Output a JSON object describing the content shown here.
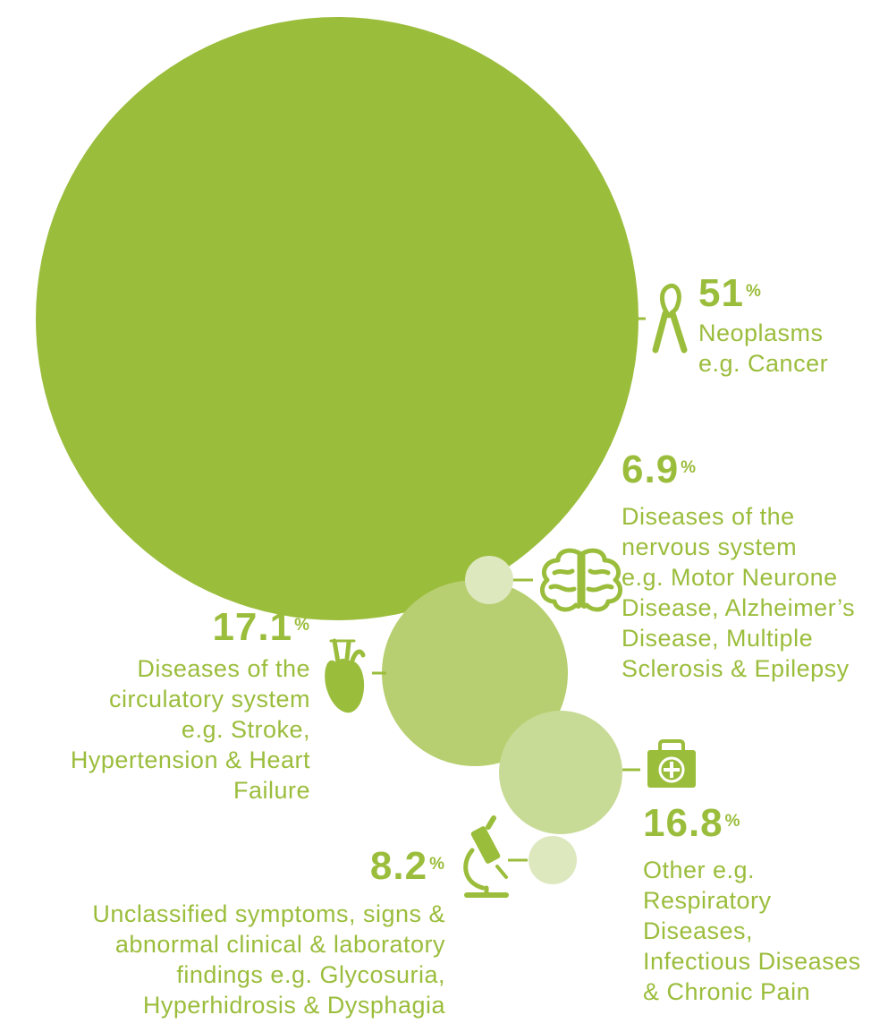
{
  "chart_data": {
    "type": "bubble",
    "colors": {
      "primary": "#9bbd3c",
      "mid": "#b7cf70",
      "light": "#c8db96",
      "pale": "#dde8bf"
    },
    "series": [
      {
        "key": "neoplasms",
        "value": 51,
        "value_label": "51",
        "unit": "%",
        "icon": "ribbon-icon",
        "lines": [
          "Neoplasms",
          "e.g. Cancer"
        ]
      },
      {
        "key": "nervous",
        "value": 6.9,
        "value_label": "6.9",
        "unit": "%",
        "icon": "brain-icon",
        "lines": [
          "Diseases of the",
          "nervous system",
          "e.g. Motor Neurone",
          "Disease, Alzheimer’s",
          "Disease, Multiple",
          "Sclerosis & Epilepsy"
        ]
      },
      {
        "key": "circulatory",
        "value": 17.1,
        "value_label": "17.1",
        "unit": "%",
        "icon": "heart-icon",
        "lines": [
          "Diseases of the",
          "circulatory system",
          "e.g. Stroke,",
          "Hypertension & Heart",
          "Failure"
        ]
      },
      {
        "key": "other",
        "value": 16.8,
        "value_label": "16.8",
        "unit": "%",
        "icon": "first-aid-kit-icon",
        "lines": [
          "Other e.g.",
          "Respiratory",
          "Diseases,",
          "Infectious Diseases",
          "& Chronic Pain"
        ]
      },
      {
        "key": "unclassified",
        "value": 8.2,
        "value_label": "8.2",
        "unit": "%",
        "icon": "microscope-icon",
        "lines": [
          "Unclassified symptoms, signs &",
          "abnormal clinical & laboratory",
          "findings e.g. Glycosuria,",
          "Hyperhidrosis & Dysphagia"
        ]
      }
    ]
  }
}
